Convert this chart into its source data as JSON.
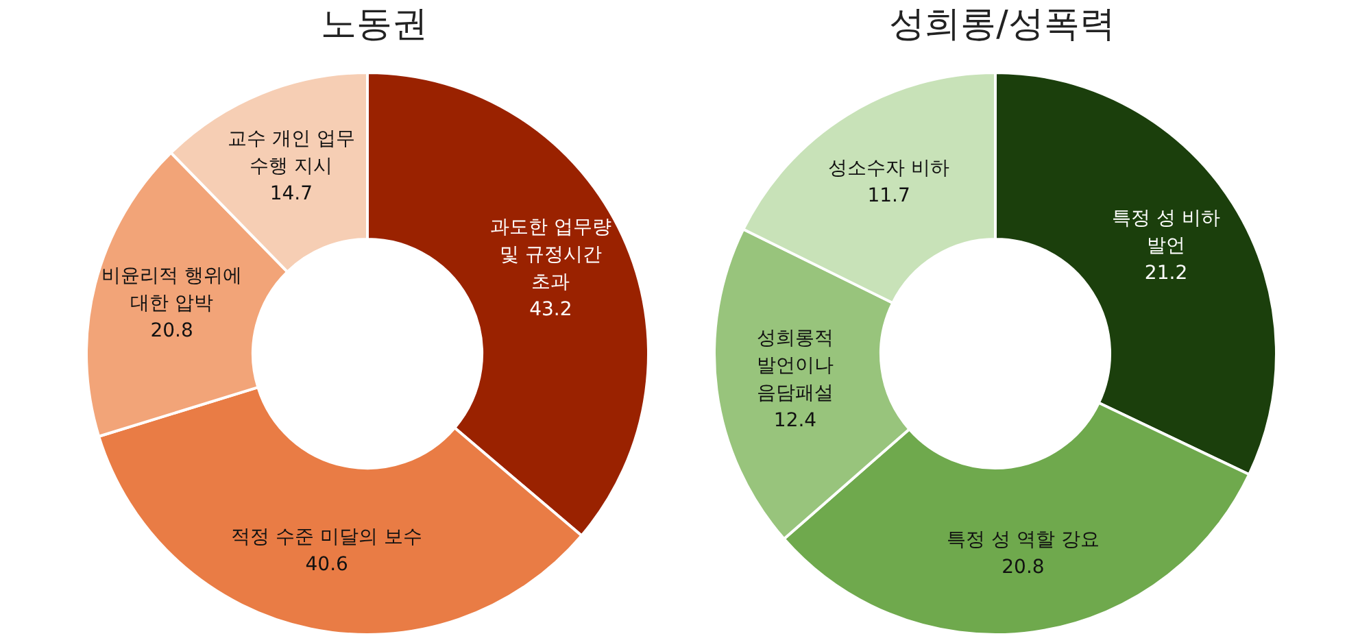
{
  "chart_data": [
    {
      "type": "donut",
      "title": "노동권",
      "categories": [
        "과도한 업무량 및 규정시간 초과",
        "적정 수준 미달의 보수",
        "비윤리적 행위에 대한 압박",
        "교수 개인 업무 수행 지시"
      ],
      "values": [
        43.2,
        40.6,
        20.8,
        14.7
      ],
      "colors": [
        "#9a2200",
        "#e97c45",
        "#f2a478",
        "#f6ceb4"
      ],
      "data_labels": true,
      "legend": false
    },
    {
      "type": "donut",
      "title": "성희롱/성폭력",
      "categories": [
        "특정 성 비하 발언",
        "특정 성 역할 강요",
        "성희롱적 발언이나 음담패설",
        "성소수자 비하"
      ],
      "values": [
        21.2,
        20.8,
        12.4,
        11.7
      ],
      "colors": [
        "#1b3f0c",
        "#6fa94d",
        "#98c47c",
        "#c8e2b8"
      ],
      "data_labels": true,
      "legend": false
    }
  ]
}
